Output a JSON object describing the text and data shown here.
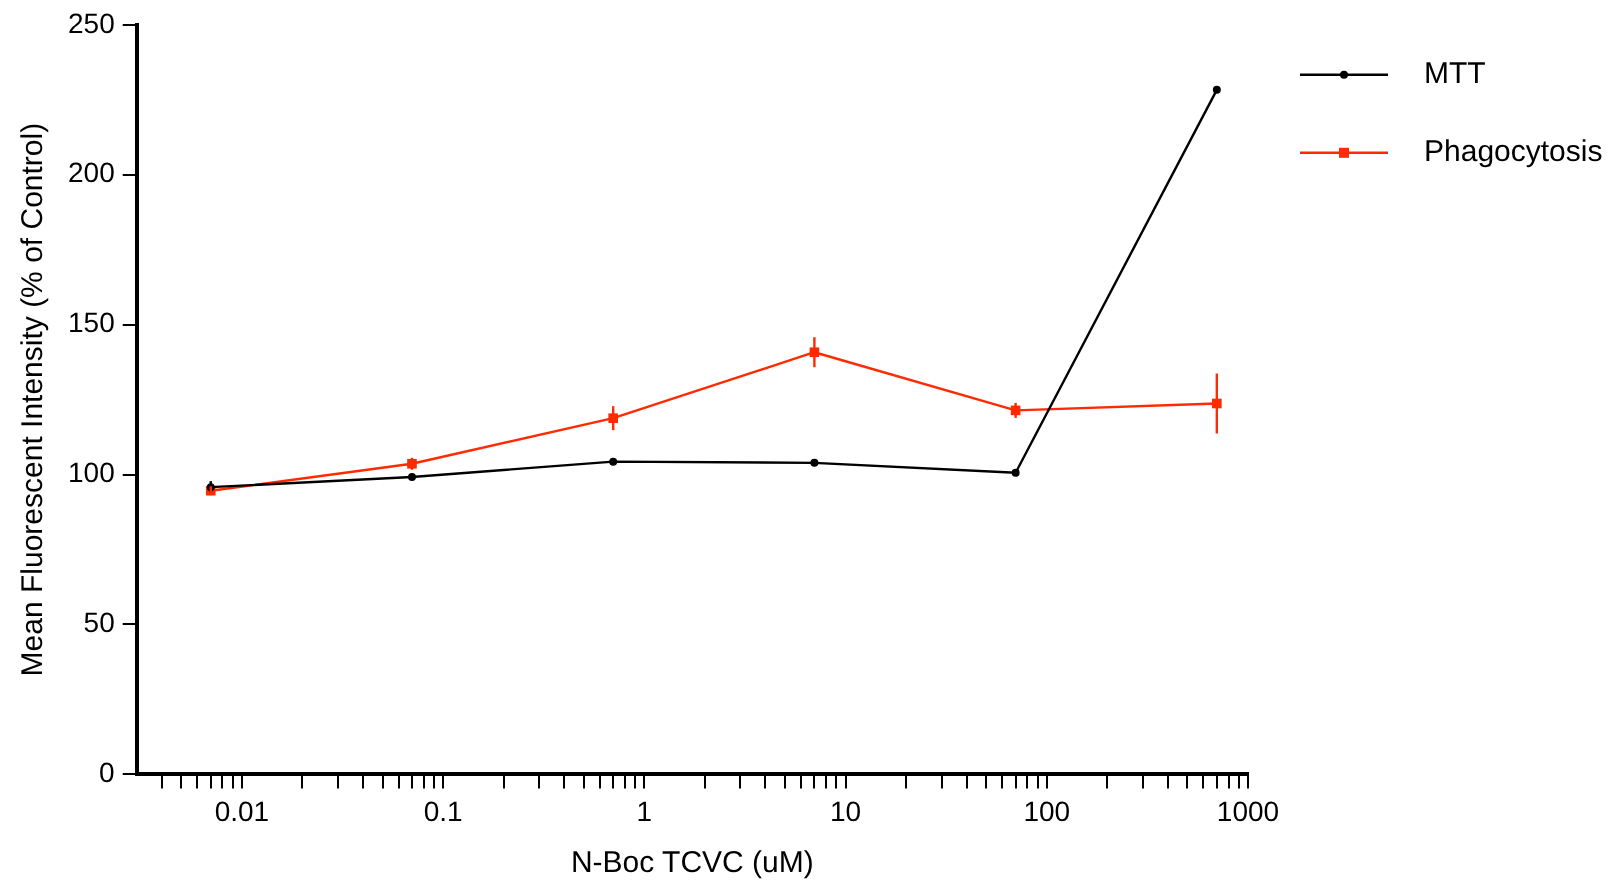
{
  "chart_data": {
    "type": "line",
    "xlabel": "N-Boc TCVC (uM)",
    "ylabel": "Mean Fluorescent Intensity (% of Control)",
    "log": "x",
    "xlim": [
      0.003,
      1000
    ],
    "xticks": [
      {
        "value": 0.004,
        "label": null
      },
      {
        "value": 0.005,
        "label": null
      },
      {
        "value": 0.006,
        "label": null
      },
      {
        "value": 0.007,
        "label": null
      },
      {
        "value": 0.008,
        "label": null
      },
      {
        "value": 0.009,
        "label": null
      },
      {
        "value": 0.01,
        "label": "0.01"
      },
      {
        "value": 0.02,
        "label": null
      },
      {
        "value": 0.03,
        "label": null
      },
      {
        "value": 0.04,
        "label": null
      },
      {
        "value": 0.05,
        "label": null
      },
      {
        "value": 0.06,
        "label": null
      },
      {
        "value": 0.07,
        "label": null
      },
      {
        "value": 0.08,
        "label": null
      },
      {
        "value": 0.09,
        "label": null
      },
      {
        "value": 0.1,
        "label": "0.1"
      },
      {
        "value": 0.2,
        "label": null
      },
      {
        "value": 0.3,
        "label": null
      },
      {
        "value": 0.4,
        "label": null
      },
      {
        "value": 0.5,
        "label": null
      },
      {
        "value": 0.6,
        "label": null
      },
      {
        "value": 0.7,
        "label": null
      },
      {
        "value": 0.8,
        "label": null
      },
      {
        "value": 0.9,
        "label": null
      },
      1,
      {
        "value": 2,
        "label": null
      },
      {
        "value": 3,
        "label": null
      },
      {
        "value": 4,
        "label": null
      },
      {
        "value": 5,
        "label": null
      },
      {
        "value": 6,
        "label": null
      },
      {
        "value": 7,
        "label": null
      },
      {
        "value": 8,
        "label": null
      },
      {
        "value": 9,
        "label": null
      },
      10,
      {
        "value": 20,
        "label": null
      },
      {
        "value": 30,
        "label": null
      },
      {
        "value": 40,
        "label": null
      },
      {
        "value": 50,
        "label": null
      },
      {
        "value": 60,
        "label": null
      },
      {
        "value": 70,
        "label": null
      },
      {
        "value": 80,
        "label": null
      },
      {
        "value": 90,
        "label": null
      },
      100,
      {
        "value": 200,
        "label": null
      },
      {
        "value": 300,
        "label": null
      },
      {
        "value": 400,
        "label": null
      },
      {
        "value": 500,
        "label": null
      },
      {
        "value": 600,
        "label": null
      },
      {
        "value": 700,
        "label": null
      },
      {
        "value": 800,
        "label": null
      },
      {
        "value": 900,
        "label": null
      },
      1000
    ],
    "ylim": [
      0,
      250
    ],
    "yticks": [
      0,
      50,
      100,
      150,
      200,
      250
    ],
    "grid": false,
    "legend": "top right",
    "line_style": "solid",
    "x": [
      0.007,
      0.07,
      0.7,
      7,
      70,
      700
    ],
    "series": [
      {
        "name": "MTT",
        "color": "#000000",
        "marker": "circle",
        "values": [
          95.8,
          99.2,
          104.3,
          103.9,
          100.6,
          228.3
        ],
        "errors": [
          2,
          null,
          null,
          null,
          null,
          null
        ]
      },
      {
        "name": "Phagocytosis",
        "color": "#ff2a00",
        "marker": "square",
        "values": [
          94.6,
          103.6,
          118.8,
          140.8,
          121.4,
          123.7
        ],
        "errors": [
          1.5,
          2,
          4,
          5,
          2.5,
          10
        ]
      }
    ]
  }
}
